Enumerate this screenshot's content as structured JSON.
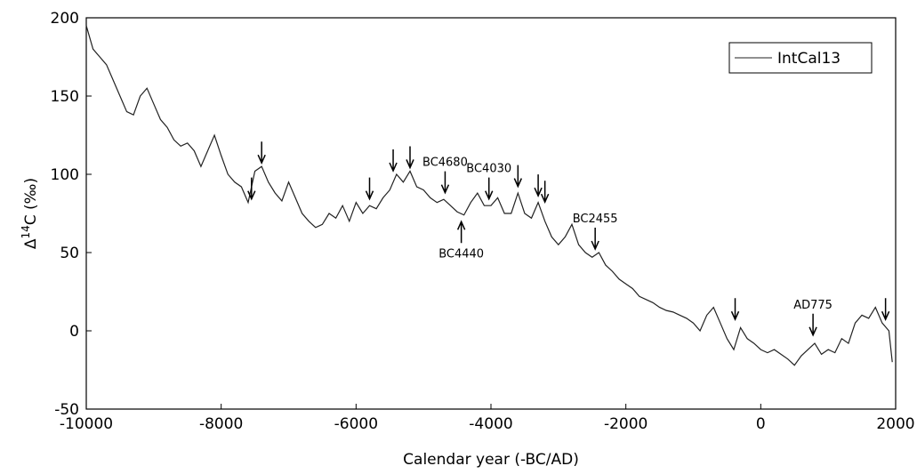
{
  "chart_data": {
    "type": "line",
    "xlabel": "Calendar year (-BC/AD)",
    "ylabel": {
      "prefix": "Δ",
      "sup": "14",
      "suffix": "C (‰)"
    },
    "xlim": [
      -10000,
      2000
    ],
    "ylim": [
      -50,
      200
    ],
    "xticks": [
      -10000,
      -8000,
      -6000,
      -4000,
      -2000,
      0,
      2000
    ],
    "yticks": [
      -50,
      0,
      50,
      100,
      150,
      200
    ],
    "legend": "upper right",
    "x": [
      -10000,
      -9900,
      -9800,
      -9700,
      -9600,
      -9500,
      -9400,
      -9300,
      -9200,
      -9100,
      -9000,
      -8900,
      -8800,
      -8700,
      -8600,
      -8500,
      -8400,
      -8300,
      -8200,
      -8100,
      -8000,
      -7900,
      -7800,
      -7700,
      -7600,
      -7500,
      -7400,
      -7300,
      -7200,
      -7100,
      -7000,
      -6900,
      -6800,
      -6700,
      -6600,
      -6500,
      -6400,
      -6300,
      -6200,
      -6100,
      -6000,
      -5900,
      -5800,
      -5700,
      -5600,
      -5500,
      -5400,
      -5300,
      -5200,
      -5100,
      -5000,
      -4900,
      -4800,
      -4700,
      -4600,
      -4500,
      -4400,
      -4300,
      -4200,
      -4100,
      -4000,
      -3900,
      -3800,
      -3700,
      -3600,
      -3500,
      -3400,
      -3300,
      -3200,
      -3100,
      -3000,
      -2900,
      -2800,
      -2700,
      -2600,
      -2500,
      -2400,
      -2300,
      -2200,
      -2100,
      -2000,
      -1900,
      -1800,
      -1700,
      -1600,
      -1500,
      -1400,
      -1300,
      -1200,
      -1100,
      -1000,
      -900,
      -800,
      -700,
      -600,
      -500,
      -400,
      -300,
      -200,
      -100,
      0,
      100,
      200,
      300,
      400,
      500,
      600,
      700,
      800,
      900,
      1000,
      1100,
      1200,
      1300,
      1400,
      1500,
      1600,
      1700,
      1800,
      1900,
      1950
    ],
    "series": [
      {
        "name": "IntCal13",
        "color": "#222222",
        "values": [
          195,
          180,
          175,
          170,
          160,
          150,
          140,
          138,
          150,
          155,
          145,
          135,
          130,
          122,
          118,
          120,
          115,
          105,
          115,
          125,
          112,
          100,
          95,
          92,
          82,
          102,
          105,
          95,
          88,
          83,
          95,
          85,
          75,
          70,
          66,
          68,
          75,
          72,
          80,
          70,
          82,
          75,
          80,
          78,
          85,
          90,
          100,
          95,
          102,
          92,
          90,
          85,
          82,
          84,
          80,
          76,
          74,
          82,
          88,
          80,
          80,
          85,
          75,
          75,
          88,
          75,
          72,
          82,
          70,
          60,
          55,
          60,
          68,
          55,
          50,
          47,
          50,
          42,
          38,
          33,
          30,
          27,
          22,
          20,
          18,
          15,
          13,
          12,
          10,
          8,
          5,
          0,
          10,
          15,
          5,
          -5,
          -12,
          2,
          -5,
          -8,
          -12,
          -14,
          -12,
          -15,
          -18,
          -22,
          -16,
          -12,
          -8,
          -15,
          -12,
          -14,
          -5,
          -8,
          5,
          10,
          8,
          15,
          5,
          0,
          -20
        ]
      }
    ],
    "annotations": [
      {
        "x": -7550,
        "y": 82,
        "direction": "down"
      },
      {
        "x": -7400,
        "y": 105,
        "direction": "down"
      },
      {
        "x": -5800,
        "y": 82,
        "direction": "down"
      },
      {
        "x": -5450,
        "y": 100,
        "direction": "down"
      },
      {
        "x": -5200,
        "y": 102,
        "direction": "down"
      },
      {
        "x": -4680,
        "y": 86,
        "direction": "down",
        "label": "BC4680"
      },
      {
        "x": -4440,
        "y": 72,
        "direction": "up",
        "label": "BC4440"
      },
      {
        "x": -4030,
        "y": 82,
        "direction": "down",
        "label": "BC4030"
      },
      {
        "x": -3600,
        "y": 90,
        "direction": "down"
      },
      {
        "x": -3300,
        "y": 84,
        "direction": "down"
      },
      {
        "x": -3200,
        "y": 80,
        "direction": "down"
      },
      {
        "x": -2455,
        "y": 50,
        "direction": "down",
        "label": "BC2455"
      },
      {
        "x": -380,
        "y": 5,
        "direction": "down"
      },
      {
        "x": 775,
        "y": -5,
        "direction": "down",
        "label": "AD775"
      },
      {
        "x": 1850,
        "y": 5,
        "direction": "down"
      }
    ]
  }
}
